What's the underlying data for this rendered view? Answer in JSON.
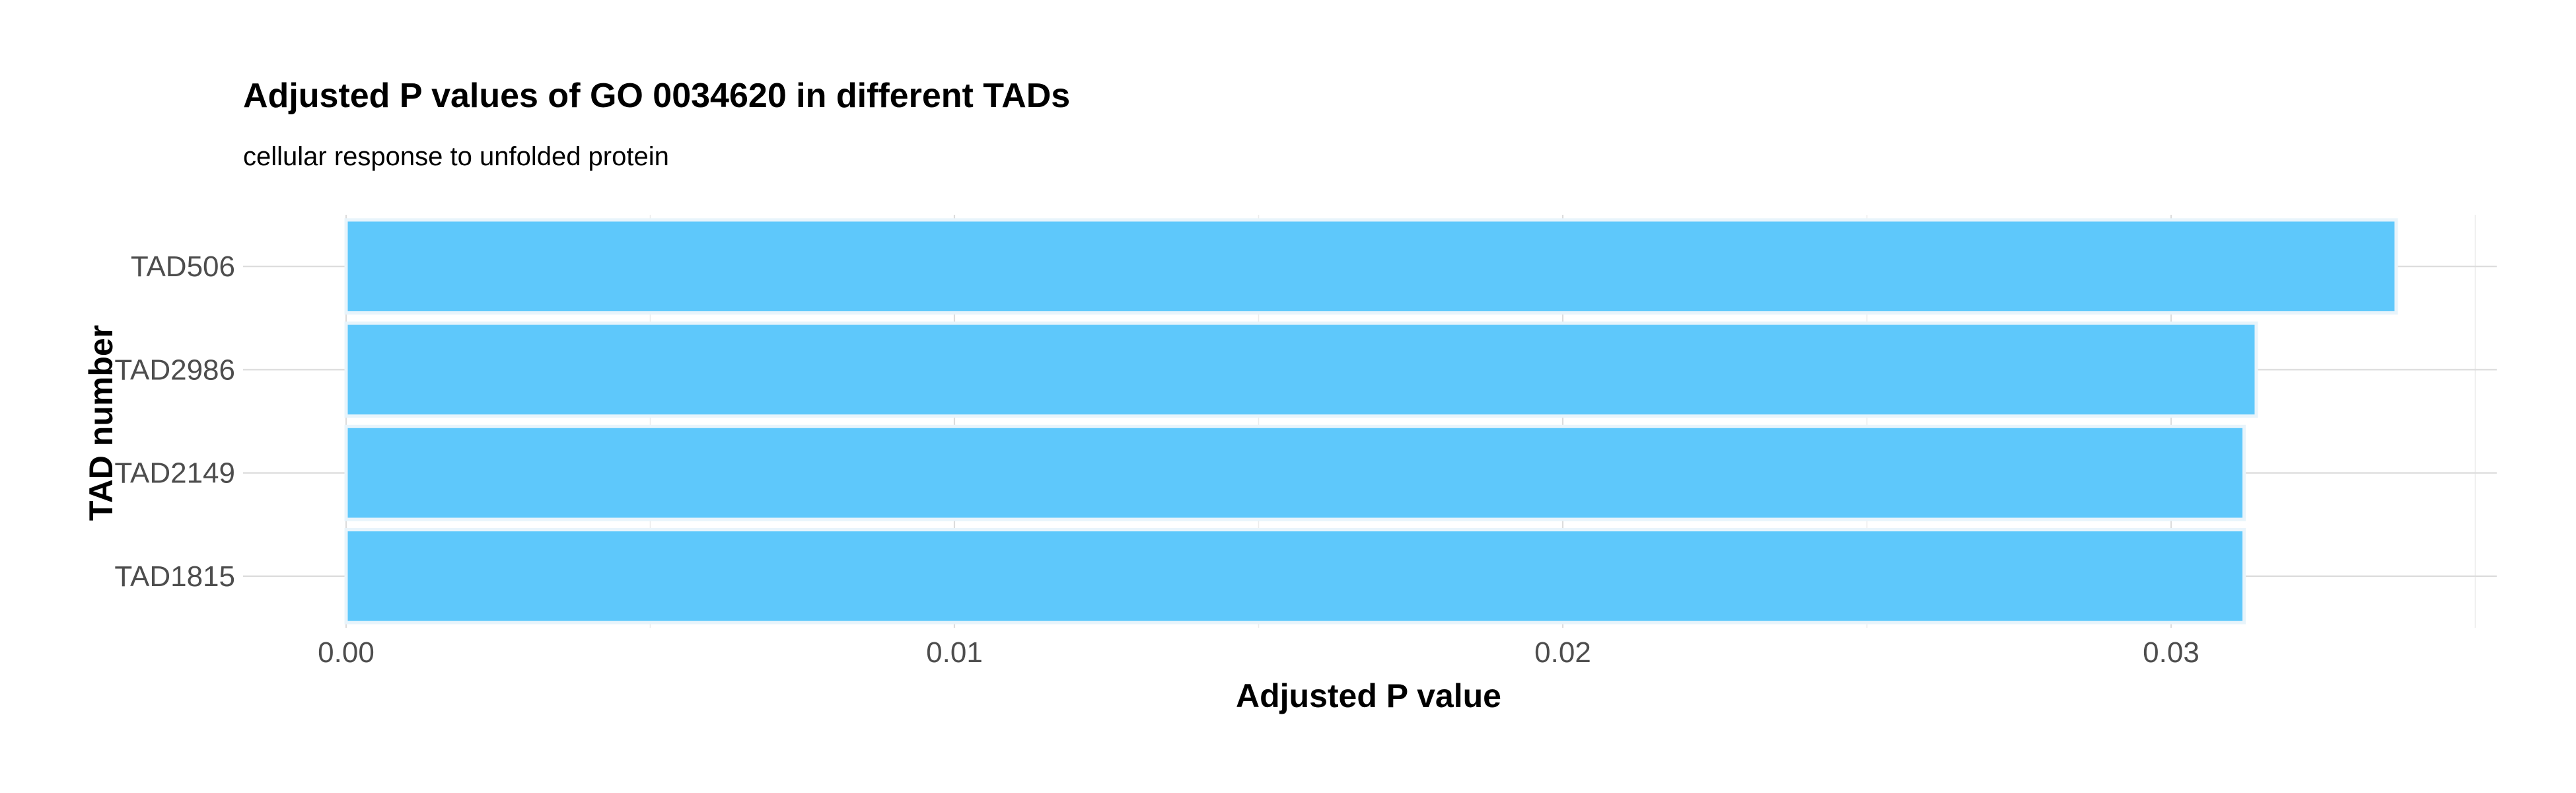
{
  "chart_data": {
    "type": "bar",
    "orientation": "horizontal",
    "title": "Adjusted P values of GO 0034620 in different TADs",
    "subtitle": "cellular response to unfolded protein",
    "xlabel": "Adjusted P value",
    "ylabel": "TAD number",
    "categories": [
      "TAD506",
      "TAD2986",
      "TAD2149",
      "TAD1815"
    ],
    "values": [
      0.0337,
      0.0314,
      0.0312,
      0.0312
    ],
    "xlim": [
      0,
      0.035
    ],
    "x_ticks": [
      0.0,
      0.01,
      0.02,
      0.03
    ],
    "x_tick_labels": [
      "0.00",
      "0.01",
      "0.02",
      "0.03"
    ],
    "grid": true,
    "legend": "none",
    "bar_color": "#5ec8fb"
  }
}
